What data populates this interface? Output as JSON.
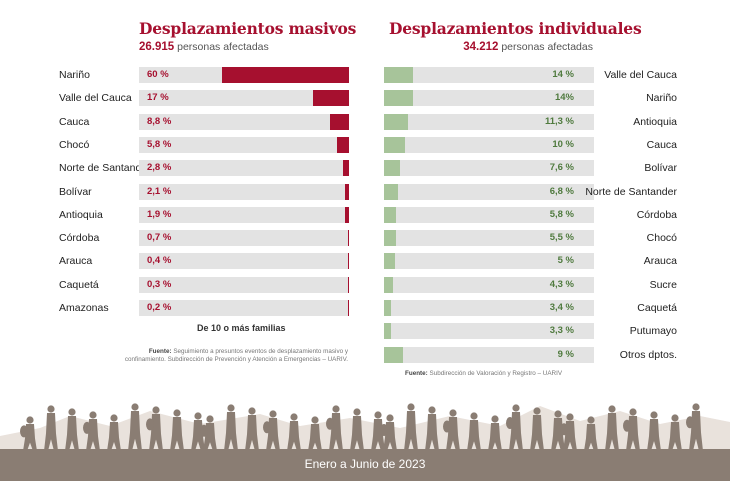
{
  "left": {
    "title": "Desplazamientos masivos",
    "count": "26.915",
    "count_label": "personas afectadas",
    "note": "De 10 o más familias",
    "source_bold": "Fuente:",
    "source_text1": "Seguimiento a presuntos eventos de desplazamiento masivo y",
    "source_text2": "confinamiento. Subdirección de Prevención y Atención a Emergencias – UARIV."
  },
  "right": {
    "title": "Desplazamientos individuales",
    "count": "34.212",
    "count_label": "personas afectadas",
    "source_bold": "Fuente:",
    "source_text": "Subdirección de Valoración y Registro – UARIV"
  },
  "footer": {
    "text": "Enero a Junio de 2023"
  },
  "colors": {
    "masivos": "#a6102f",
    "individuales": "#a7c49a",
    "footer": "#8a7d73"
  },
  "chart_data": [
    {
      "type": "bar",
      "title": "Desplazamientos masivos",
      "categories": [
        "Nariño",
        "Valle del Cauca",
        "Cauca",
        "Chocó",
        "Norte de Santander",
        "Bolívar",
        "Antioquia",
        "Córdoba",
        "Arauca",
        "Caquetá",
        "Amazonas"
      ],
      "values": [
        60,
        17,
        8.8,
        5.8,
        2.8,
        2.1,
        1.9,
        0.7,
        0.4,
        0.3,
        0.2
      ],
      "labels": [
        "60 %",
        "17 %",
        "8,8 %",
        "5,8 %",
        "2,8 %",
        "2,1 %",
        "1,9 %",
        "0,7 %",
        "0,4 %",
        "0,3 %",
        "0,2 %"
      ],
      "ylim": [
        0,
        60
      ]
    },
    {
      "type": "bar",
      "title": "Desplazamientos individuales",
      "categories": [
        "Valle del Cauca",
        "Nariño",
        "Antioquia",
        "Cauca",
        "Bolívar",
        "Norte de Santander",
        "Córdoba",
        "Chocó",
        "Arauca",
        "Sucre",
        "Caquetá",
        "Putumayo",
        "Otros dptos."
      ],
      "values": [
        14,
        14,
        11.3,
        10,
        7.6,
        6.8,
        5.8,
        5.5,
        5,
        4.3,
        3.4,
        3.3,
        9
      ],
      "labels": [
        "14 %",
        "14%",
        "11,3 %",
        "10 %",
        "7,6 %",
        "6,8 %",
        "5,8 %",
        "5,5 %",
        "5 %",
        "4,3 %",
        "3,4 %",
        "3,3 %",
        "9 %"
      ],
      "ylim": [
        0,
        100
      ]
    }
  ]
}
